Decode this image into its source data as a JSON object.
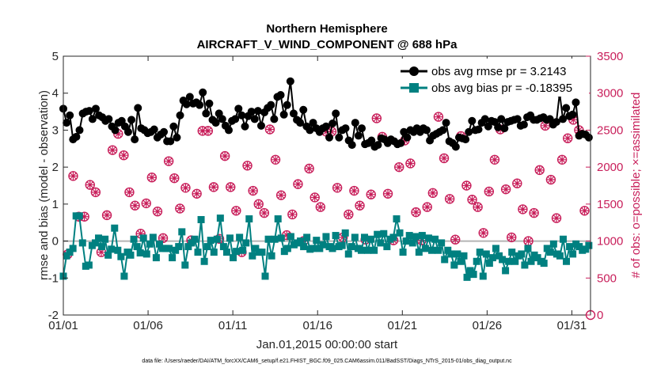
{
  "chart_data": {
    "type": "line",
    "title_line1": "Northern Hemisphere",
    "title_line2": "AIRCRAFT_V_WIND_COMPONENT @ 688 hPa",
    "xlabel": "Jan.01,2015 00:00:00 start",
    "ylabel_left": "rmse and bias (model - observation)",
    "ylabel_right": "# of obs: o=possible; ×=assimilated",
    "footnote": "data file: /Users/raeder/DAI/ATM_forcXX/CAM6_setup/f.e21.FHIST_BGC.f09_025.CAM6assim.011/BadSST/Diags_NTrS_2015-01/obs_diag_output.nc",
    "xlim": [
      0,
      31.1
    ],
    "ylim_left": [
      -2,
      5
    ],
    "ylim_right": [
      0,
      3500
    ],
    "x_tick_values": [
      0,
      5,
      10,
      15,
      20,
      25,
      30
    ],
    "x_tick_labels": [
      "01/01",
      "01/06",
      "01/11",
      "01/16",
      "01/21",
      "01/26",
      "01/31"
    ],
    "y_ticks_left": [
      "-2",
      "-1",
      "0",
      "1",
      "2",
      "3",
      "4",
      "5"
    ],
    "y_ticks_right": [
      "0",
      "500",
      "1000",
      "1500",
      "2000",
      "2500",
      "3000",
      "3500"
    ],
    "colors": {
      "rmse": "#000000",
      "bias": "#008080",
      "obs": "#c81e5a",
      "zero_line": "#b4b4b4"
    },
    "legend": {
      "position": "top-right",
      "entries": [
        "obs avg rmse pr = 3.2143",
        "obs avg bias pr = -0.18395"
      ]
    },
    "series": [
      {
        "name": "obs avg rmse pr = 3.2143",
        "axis": "left",
        "marker": "circle",
        "values": [
          3.58,
          3.2,
          3.4,
          2.75,
          2.82,
          3.0,
          3.45,
          3.5,
          3.52,
          3.3,
          3.58,
          3.4,
          3.35,
          3.25,
          3.3,
          3.1,
          3.0,
          3.2,
          3.25,
          3.1,
          2.95,
          3.28,
          2.75,
          3.6,
          3.05,
          3.0,
          2.92,
          2.95,
          3.02,
          2.8,
          2.88,
          2.95,
          2.7,
          2.7,
          3.1,
          2.8,
          3.4,
          3.8,
          3.7,
          3.9,
          3.72,
          3.75,
          3.68,
          4.02,
          3.45,
          3.72,
          3.28,
          3.2,
          3.45,
          3.3,
          3.12,
          3.0,
          3.25,
          3.3,
          3.58,
          3.4,
          3.1,
          3.38,
          3.5,
          3.3,
          3.52,
          3.12,
          3.48,
          3.6,
          3.68,
          3.3,
          3.9,
          3.95,
          3.42,
          3.68,
          4.32,
          3.45,
          3.28,
          3.2,
          3.55,
          3.1,
          3.0,
          3.2,
          3.05,
          2.95,
          3.05,
          3.1,
          2.8,
          3.18,
          3.45,
          2.8,
          3.0,
          3.05,
          2.72,
          2.6,
          3.2,
          2.85,
          3.05,
          2.62,
          2.65,
          2.72,
          2.55,
          2.6,
          2.78,
          2.75,
          2.65,
          2.75,
          2.7,
          2.62,
          2.65,
          2.95,
          2.8,
          3.0,
          2.95,
          3.05,
          2.95,
          3.05,
          3.0,
          2.72,
          2.85,
          2.9,
          2.95,
          3.0,
          3.2,
          2.7,
          2.65,
          2.55,
          2.8,
          2.78,
          2.75,
          2.95,
          3.25,
          3.0,
          3.02,
          3.2,
          3.3,
          3.1,
          3.25,
          3.22,
          3.08,
          3.3,
          3.05,
          3.22,
          3.25,
          3.28,
          3.3,
          3.12,
          3.15,
          3.35,
          3.4,
          3.28,
          3.28,
          3.32,
          3.35,
          3.28,
          3.3,
          3.15,
          3.22,
          4.0,
          3.3,
          3.6,
          3.38,
          3.42,
          3.75,
          2.85,
          2.9,
          2.88,
          2.8
        ]
      },
      {
        "name": "obs avg bias pr = -0.18395",
        "axis": "left",
        "marker": "square",
        "values": [
          -0.95,
          -0.4,
          -0.3,
          -0.2,
          0.68,
          0.68,
          -0.05,
          -0.68,
          -0.65,
          -0.12,
          -0.05,
          0.08,
          -0.15,
          0.05,
          -0.38,
          -0.22,
          0.35,
          -0.25,
          -0.42,
          -0.95,
          -0.3,
          -0.38,
          0.05,
          -0.15,
          -0.32,
          0.08,
          -0.35,
          -0.08,
          0.1,
          -0.45,
          -0.08,
          -0.2,
          -0.2,
          -0.2,
          -0.45,
          -0.25,
          -0.15,
          0.25,
          -0.65,
          -0.15,
          -0.05,
          0.05,
          -0.3,
          0.58,
          -0.55,
          -0.15,
          0.02,
          -0.3,
          0.05,
          0.62,
          -0.15,
          -0.3,
          0.08,
          -0.45,
          -0.28,
          0.1,
          -0.25,
          -0.05,
          0.6,
          -0.4,
          -0.2,
          -0.3,
          -0.3,
          -0.95,
          0.05,
          -0.4,
          0.05,
          0.6,
          0.08,
          -0.28,
          -0.2,
          0.12,
          -0.1,
          -0.05,
          0.0,
          -0.15,
          0.1,
          -0.22,
          -0.2,
          0.02,
          -0.2,
          -0.1,
          0.12,
          -0.15,
          -0.2,
          0.15,
          -0.15,
          -0.12,
          0.22,
          -0.35,
          -0.15,
          0.1,
          -0.2,
          -0.25,
          0.1,
          -0.25,
          0.05,
          -0.25,
          0.18,
          -0.05,
          0.2,
          -0.15,
          0.05,
          0.1,
          0.6,
          0.22,
          -0.3,
          0.0,
          0.15,
          -0.05,
          0.12,
          -0.3,
          0.15,
          -0.2,
          0.08,
          -0.25,
          0.05,
          -0.25,
          -0.05,
          -0.5,
          -0.25,
          -0.35,
          -0.65,
          -0.35,
          -0.55,
          -0.4,
          -0.98,
          -0.8,
          -0.9,
          -0.55,
          -0.3,
          -0.95,
          -0.35,
          -0.6,
          -0.45,
          -0.2,
          -0.4,
          -0.5,
          -0.8,
          -0.55,
          -0.3,
          -0.55,
          -0.4,
          -0.35,
          -0.65,
          -0.2,
          -0.55,
          -0.38,
          -0.45,
          -0.55,
          -0.6,
          -0.2,
          -0.3,
          -0.08,
          -0.35,
          -0.4,
          0.05,
          -0.55,
          -0.15,
          -0.35,
          -0.08,
          -0.15,
          -0.25,
          -0.22,
          -0.12
        ]
      },
      {
        "name": "possible",
        "axis": "right",
        "marker": "circle-cross",
        "values": [
          820,
          1880,
          1330,
          1330,
          1760,
          1660,
          850,
          1350,
          2230,
          2450,
          2160,
          1660,
          1480,
          1100,
          1510,
          1860,
          1400,
          1040,
          2080,
          1850,
          1440,
          1720,
          1010,
          1640,
          2490,
          2490,
          1730,
          1030,
          2150,
          1730,
          1410,
          850,
          2020,
          1680,
          1500,
          1380,
          2510,
          2100,
          1620,
          1080,
          1360,
          1770,
          1000,
          1980,
          1590,
          1460,
          2480,
          2480,
          1720,
          1050,
          1360,
          1680,
          1480,
          1020,
          1630,
          2660,
          2410,
          1640,
          1010,
          2000,
          2360,
          2050,
          1390,
          1010,
          1460,
          1650,
          2680,
          2120,
          1570,
          1020,
          2420,
          1750,
          1560,
          1460,
          1110,
          1670,
          2100,
          2510,
          1700,
          1050,
          1780,
          1430,
          1000,
          1380,
          1960,
          2560,
          1830,
          1310,
          2100,
          2390,
          2640,
          2500,
          1410
        ]
      },
      {
        "name": "assimilated",
        "axis": "right",
        "marker": "asterisk",
        "values": [
          820,
          1880,
          1320,
          1330,
          1760,
          1660,
          850,
          1350,
          2230,
          2450,
          2160,
          1660,
          1480,
          1100,
          1510,
          1860,
          1400,
          1040,
          2080,
          1850,
          1440,
          1720,
          1010,
          1640,
          2490,
          2490,
          1730,
          1030,
          2150,
          1730,
          1410,
          850,
          2020,
          1680,
          1500,
          1380,
          2510,
          2100,
          1620,
          1080,
          1360,
          1770,
          1000,
          1980,
          1590,
          1460,
          2480,
          2480,
          1720,
          1050,
          1360,
          1680,
          1480,
          1020,
          1630,
          2660,
          2410,
          1640,
          1010,
          2000,
          2360,
          2050,
          1390,
          1010,
          1460,
          1650,
          2680,
          2120,
          1570,
          1020,
          2420,
          1750,
          1560,
          1460,
          1110,
          1670,
          2100,
          2510,
          1700,
          1050,
          1780,
          1430,
          1000,
          1380,
          1960,
          2560,
          1830,
          1310,
          2100,
          2390,
          2640,
          2500,
          1410
        ]
      }
    ]
  }
}
